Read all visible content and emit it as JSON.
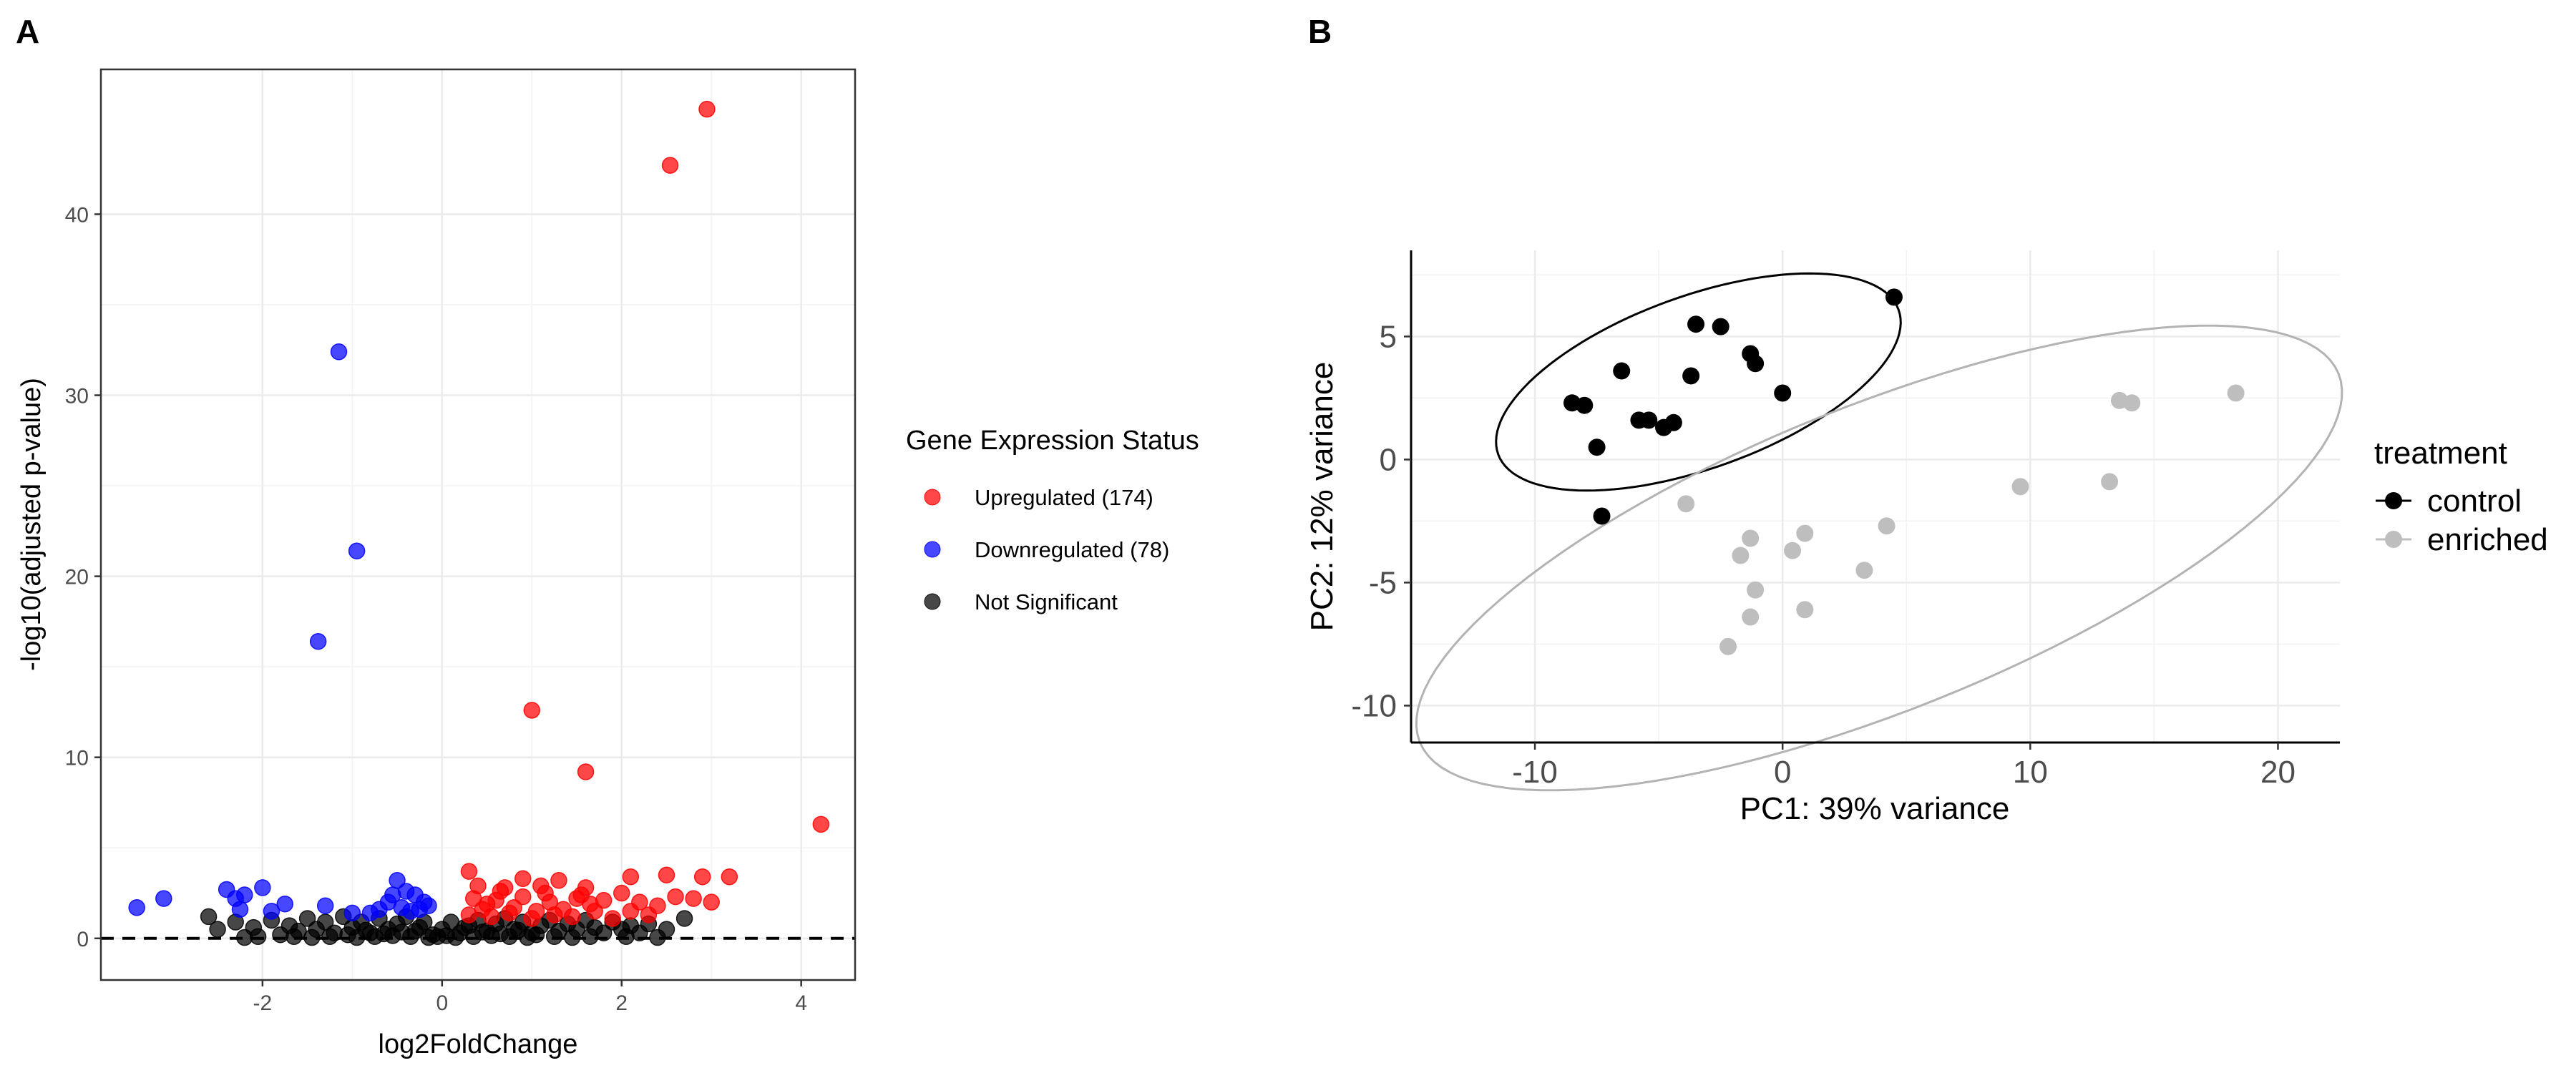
{
  "chart_data": [
    {
      "panel": "A",
      "type": "scatter",
      "xlabel": "log2FoldChange",
      "ylabel": "-log10(adjusted p-value)",
      "xlim": [
        -3.8,
        4.6
      ],
      "ylim": [
        -2.3,
        48.0
      ],
      "x_ticks": [
        -2,
        0,
        2,
        4
      ],
      "y_ticks": [
        0,
        10,
        20,
        30,
        40
      ],
      "grid": true,
      "reference_line": {
        "y": 0,
        "style": "dashed"
      },
      "legend": {
        "title": "Gene Expression Status",
        "placement": "right",
        "entries": [
          {
            "label": "Upregulated (174)",
            "color": "#ff0000"
          },
          {
            "label": "Downregulated (78)",
            "color": "#0000ff"
          },
          {
            "label": "Not Significant",
            "color": "#000000"
          }
        ]
      },
      "series": [
        {
          "name": "Upregulated (174)",
          "color": "#ff0000",
          "points": [
            [
              2.95,
              45.8
            ],
            [
              2.54,
              42.7
            ],
            [
              1.0,
              12.6
            ],
            [
              1.6,
              9.2
            ],
            [
              4.22,
              6.3
            ],
            [
              0.3,
              3.7
            ],
            [
              0.9,
              3.3
            ],
            [
              1.3,
              3.2
            ],
            [
              2.1,
              3.4
            ],
            [
              2.5,
              3.5
            ],
            [
              2.9,
              3.4
            ],
            [
              3.2,
              3.4
            ],
            [
              0.4,
              2.9
            ],
            [
              0.7,
              2.8
            ],
            [
              1.1,
              2.9
            ],
            [
              1.6,
              2.8
            ],
            [
              2.0,
              2.5
            ],
            [
              2.6,
              2.3
            ],
            [
              3.0,
              2.0
            ],
            [
              0.35,
              2.2
            ],
            [
              0.6,
              2.1
            ],
            [
              0.9,
              2.3
            ],
            [
              1.2,
              2.0
            ],
            [
              1.5,
              2.2
            ],
            [
              1.8,
              2.1
            ],
            [
              2.2,
              2.0
            ],
            [
              2.4,
              1.8
            ],
            [
              2.8,
              2.2
            ],
            [
              0.45,
              1.6
            ],
            [
              0.8,
              1.7
            ],
            [
              1.05,
              1.5
            ],
            [
              1.35,
              1.6
            ],
            [
              1.7,
              1.5
            ],
            [
              2.1,
              1.5
            ],
            [
              0.3,
              1.3
            ],
            [
              0.55,
              1.2
            ],
            [
              1.0,
              1.1
            ],
            [
              1.45,
              1.2
            ],
            [
              1.9,
              1.1
            ],
            [
              0.65,
              2.6
            ],
            [
              1.15,
              2.5
            ],
            [
              1.55,
              2.4
            ],
            [
              0.5,
              1.9
            ],
            [
              0.75,
              1.4
            ],
            [
              1.25,
              1.3
            ],
            [
              1.65,
              1.9
            ],
            [
              2.3,
              1.3
            ]
          ]
        },
        {
          "name": "Downregulated (78)",
          "color": "#0000ff",
          "points": [
            [
              -1.15,
              32.4
            ],
            [
              -0.95,
              21.4
            ],
            [
              -1.38,
              16.4
            ],
            [
              -3.4,
              1.7
            ],
            [
              -3.1,
              2.2
            ],
            [
              -2.4,
              2.7
            ],
            [
              -2.3,
              2.2
            ],
            [
              -2.2,
              2.4
            ],
            [
              -2.0,
              2.8
            ],
            [
              -1.75,
              1.9
            ],
            [
              -1.3,
              1.8
            ],
            [
              -0.5,
              3.2
            ],
            [
              -0.4,
              2.6
            ],
            [
              -0.6,
              2.0
            ],
            [
              -0.3,
              2.4
            ],
            [
              -0.2,
              2.0
            ],
            [
              -0.45,
              1.7
            ],
            [
              -0.7,
              1.6
            ],
            [
              -0.35,
              1.5
            ],
            [
              -0.55,
              2.4
            ],
            [
              -0.25,
              1.6
            ],
            [
              -0.8,
              1.4
            ],
            [
              -0.15,
              1.8
            ],
            [
              -1.0,
              1.4
            ],
            [
              -2.25,
              1.6
            ],
            [
              -1.9,
              1.5
            ]
          ]
        },
        {
          "name": "Not Significant",
          "color": "#000000",
          "points": [
            [
              -2.6,
              1.2
            ],
            [
              -2.3,
              0.9
            ],
            [
              -2.1,
              0.6
            ],
            [
              -1.9,
              1.0
            ],
            [
              -1.6,
              0.4
            ],
            [
              -2.5,
              0.5
            ],
            [
              -1.8,
              0.2
            ],
            [
              -1.7,
              0.7
            ],
            [
              -1.5,
              1.1
            ],
            [
              -1.4,
              0.5
            ],
            [
              -1.3,
              0.9
            ],
            [
              -1.2,
              0.3
            ],
            [
              -1.1,
              1.2
            ],
            [
              -1.0,
              0.6
            ],
            [
              -0.9,
              0.9
            ],
            [
              -0.8,
              0.3
            ],
            [
              -0.7,
              1.1
            ],
            [
              -0.6,
              0.5
            ],
            [
              -0.5,
              0.8
            ],
            [
              -0.4,
              1.2
            ],
            [
              -0.3,
              0.4
            ],
            [
              -0.2,
              0.9
            ],
            [
              -0.1,
              0.2
            ],
            [
              0.0,
              0.5
            ],
            [
              0.1,
              0.9
            ],
            [
              0.2,
              0.3
            ],
            [
              0.3,
              0.7
            ],
            [
              0.4,
              1.0
            ],
            [
              0.5,
              0.4
            ],
            [
              0.6,
              0.8
            ],
            [
              0.7,
              1.1
            ],
            [
              0.8,
              0.5
            ],
            [
              0.9,
              0.9
            ],
            [
              1.0,
              0.3
            ],
            [
              1.1,
              0.7
            ],
            [
              1.2,
              1.0
            ],
            [
              1.3,
              0.4
            ],
            [
              1.4,
              0.8
            ],
            [
              1.5,
              0.5
            ],
            [
              1.6,
              1.0
            ],
            [
              1.7,
              0.6
            ],
            [
              1.8,
              0.3
            ],
            [
              1.9,
              0.9
            ],
            [
              2.0,
              0.5
            ],
            [
              2.1,
              0.7
            ],
            [
              2.2,
              0.3
            ],
            [
              2.3,
              0.8
            ],
            [
              2.5,
              0.5
            ],
            [
              2.7,
              1.1
            ],
            [
              -0.05,
              0.1
            ],
            [
              0.05,
              0.15
            ],
            [
              -0.15,
              0.05
            ],
            [
              0.15,
              0.05
            ],
            [
              -0.35,
              0.1
            ],
            [
              0.35,
              0.1
            ],
            [
              -0.55,
              0.15
            ],
            [
              0.55,
              0.15
            ],
            [
              -0.75,
              0.1
            ],
            [
              0.75,
              0.1
            ],
            [
              -0.95,
              0.05
            ],
            [
              0.95,
              0.05
            ],
            [
              -1.25,
              0.1
            ],
            [
              1.25,
              0.1
            ],
            [
              -1.45,
              0.05
            ],
            [
              1.45,
              0.05
            ],
            [
              -1.65,
              0.1
            ],
            [
              1.65,
              0.1
            ],
            [
              -2.05,
              0.1
            ],
            [
              2.05,
              0.1
            ],
            [
              -2.2,
              0.05
            ],
            [
              2.4,
              0.05
            ],
            [
              -0.25,
              0.6
            ],
            [
              0.25,
              0.6
            ],
            [
              -0.65,
              0.25
            ],
            [
              0.65,
              0.25
            ],
            [
              -1.05,
              0.2
            ],
            [
              1.05,
              0.2
            ],
            [
              -0.45,
              0.35
            ],
            [
              0.45,
              0.35
            ],
            [
              -0.85,
              0.45
            ],
            [
              0.85,
              0.45
            ]
          ]
        }
      ]
    },
    {
      "panel": "B",
      "type": "scatter",
      "xlabel": "PC1: 39% variance",
      "ylabel": "PC2: 12% variance",
      "xlim": [
        -15,
        22.5
      ],
      "ylim": [
        -11.5,
        8.5
      ],
      "x_ticks": [
        -10,
        0,
        10,
        20
      ],
      "y_ticks": [
        -10,
        -5,
        0,
        5
      ],
      "grid": true,
      "legend": {
        "title": "treatment",
        "placement": "right",
        "entries": [
          {
            "label": "control",
            "color": "#000000"
          },
          {
            "label": "enriched",
            "color": "#bebebe"
          }
        ]
      },
      "series": [
        {
          "name": "control",
          "color": "#000000",
          "points": [
            [
              4.5,
              6.6
            ],
            [
              -3.5,
              5.5
            ],
            [
              -2.5,
              5.4
            ],
            [
              -1.3,
              4.3
            ],
            [
              -1.1,
              3.9
            ],
            [
              -6.5,
              3.6
            ],
            [
              -3.7,
              3.4
            ],
            [
              0.0,
              2.7
            ],
            [
              -8.5,
              2.3
            ],
            [
              -8.0,
              2.2
            ],
            [
              -5.8,
              1.6
            ],
            [
              -5.4,
              1.6
            ],
            [
              -4.8,
              1.3
            ],
            [
              -4.4,
              1.5
            ],
            [
              -7.5,
              0.5
            ],
            [
              -7.3,
              -2.3
            ]
          ],
          "ellipse": {
            "cx": -3.4,
            "cy": 3.15,
            "rx": 8.6,
            "ry": 3.5,
            "angle_deg": 20
          }
        },
        {
          "name": "enriched",
          "color": "#bebebe",
          "points": [
            [
              18.3,
              2.7
            ],
            [
              13.6,
              2.4
            ],
            [
              14.1,
              2.3
            ],
            [
              9.6,
              -1.1
            ],
            [
              13.2,
              -0.9
            ],
            [
              -3.9,
              -1.8
            ],
            [
              4.2,
              -2.7
            ],
            [
              0.9,
              -3.0
            ],
            [
              -1.3,
              -3.2
            ],
            [
              0.4,
              -3.7
            ],
            [
              -1.7,
              -3.9
            ],
            [
              3.3,
              -4.5
            ],
            [
              -1.1,
              -5.3
            ],
            [
              0.9,
              -6.1
            ],
            [
              -1.3,
              -6.4
            ],
            [
              -2.2,
              -7.6
            ]
          ],
          "ellipse": {
            "cx": 3.9,
            "cy": -4.0,
            "rx": 20.0,
            "ry": 6.2,
            "angle_deg": 22
          }
        }
      ]
    }
  ]
}
